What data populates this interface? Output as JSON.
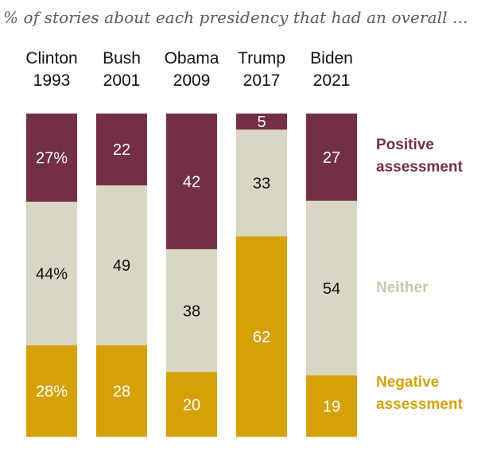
{
  "chart_data": {
    "type": "bar",
    "stacked": true,
    "subtitle": "% of stories about each presidency that had an overall ...",
    "categories": [
      {
        "name": "Clinton",
        "year": "1993"
      },
      {
        "name": "Bush",
        "year": "2001"
      },
      {
        "name": "Obama",
        "year": "2009"
      },
      {
        "name": "Trump",
        "year": "2017"
      },
      {
        "name": "Biden",
        "year": "2021"
      }
    ],
    "series": [
      {
        "name": "Positive assessment",
        "lines": [
          "Positive",
          "assessment"
        ],
        "color": "#722f45",
        "text_color": "#ffffff",
        "values": [
          27,
          22,
          42,
          5,
          27
        ],
        "labels": [
          "27%",
          "22",
          "42",
          "5",
          "27"
        ]
      },
      {
        "name": "Neither",
        "lines": [
          "Neither"
        ],
        "color": "#d9d6c3",
        "text_color": "#111111",
        "values": [
          44,
          49,
          38,
          33,
          54
        ],
        "labels": [
          "44%",
          "49",
          "38",
          "33",
          "54"
        ]
      },
      {
        "name": "Negative assessment",
        "lines": [
          "Negative",
          "assessment"
        ],
        "color": "#d4a106",
        "text_color": "#ffffff",
        "values": [
          28,
          28,
          20,
          62,
          19
        ],
        "labels": [
          "28%",
          "28",
          "20",
          "62",
          "19"
        ]
      }
    ],
    "legend_colors": [
      "#722f45",
      "#c9c5ab",
      "#d4a106"
    ],
    "legend_position": "right",
    "grid": false
  }
}
